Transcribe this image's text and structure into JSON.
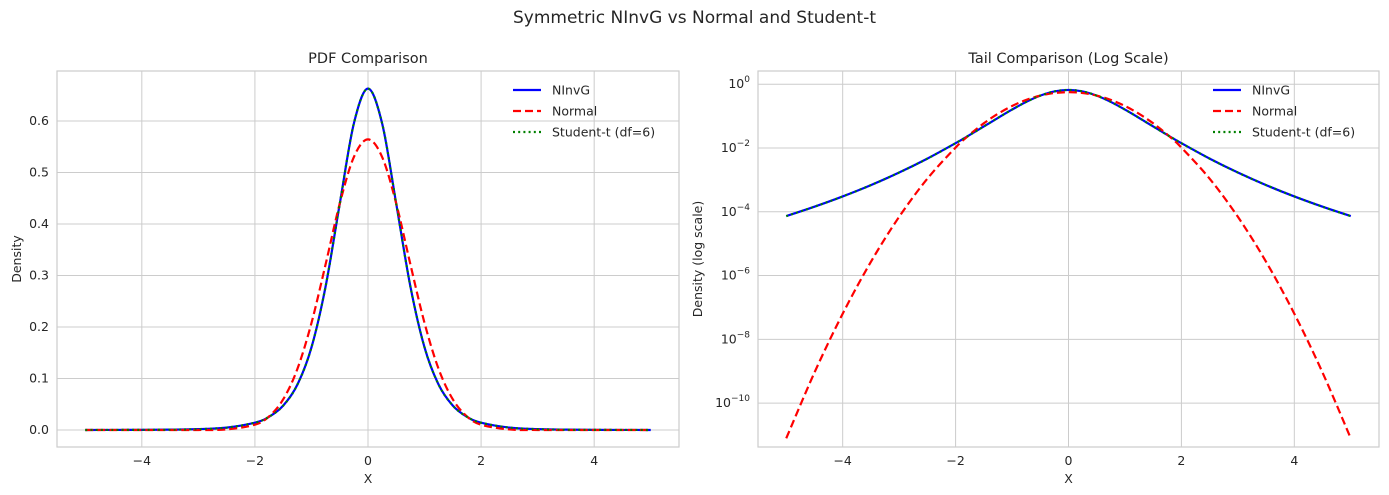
{
  "suptitle": "Symmetric NInvG vs Normal and Student-t",
  "colors": {
    "NInvG": "#0000ff",
    "Normal": "#ff0000",
    "Student-t": "#008000",
    "grid": "#cccccc",
    "spine": "#cccccc"
  },
  "chart_data": [
    {
      "type": "line",
      "title": "PDF Comparison",
      "xlabel": "X",
      "ylabel": "Density",
      "xlim": [
        -5.5,
        5.5
      ],
      "ylim": [
        -0.033,
        0.697
      ],
      "yscale": "linear",
      "grid": true,
      "legend_position": "top-right",
      "xticks": [
        -4,
        -2,
        0,
        2,
        4
      ],
      "xtick_labels": [
        "−4",
        "−2",
        "0",
        "2",
        "4"
      ],
      "yticks": [
        0,
        0.1,
        0.2,
        0.3,
        0.4,
        0.5,
        0.6
      ],
      "ytick_labels": [
        "0.0",
        "0.1",
        "0.2",
        "0.3",
        "0.4",
        "0.5",
        "0.6"
      ],
      "series_ref": "series"
    },
    {
      "type": "line",
      "title": "Tail Comparison (Log Scale)",
      "xlabel": "X",
      "ylabel": "Density (log scale)",
      "xlim": [
        -5.5,
        5.5
      ],
      "ylim": [
        4.2e-12,
        2.6
      ],
      "yscale": "log",
      "grid": true,
      "legend_position": "top-right",
      "xticks": [
        -4,
        -2,
        0,
        2,
        4
      ],
      "xtick_labels": [
        "−4",
        "−2",
        "0",
        "2",
        "4"
      ],
      "yticks": [
        1,
        0.01,
        0.0001,
        1e-06,
        1e-08,
        1e-10
      ],
      "ytick_labels": [
        [
          "10",
          "0"
        ],
        [
          "10",
          "−2"
        ],
        [
          "10",
          "−4"
        ],
        [
          "10",
          "−6"
        ],
        [
          "10",
          "−8"
        ],
        [
          "10",
          "−10"
        ]
      ],
      "series_ref": "series"
    }
  ],
  "series": {
    "x": [
      0,
      0.25,
      0.5,
      0.75,
      1,
      1.25,
      1.5,
      1.75,
      2,
      2.5,
      3,
      3.5,
      4,
      4.5,
      5
    ],
    "symmetric": true,
    "lines": [
      {
        "name": "NInvG",
        "style": "solid",
        "values": [
          0.6628,
          0.5951,
          0.4389,
          0.2785,
          0.1603,
          0.08788,
          0.04738,
          0.02568,
          0.01417,
          0.004648,
          0.001699,
          0.000686,
          0.000303,
          0.0001444,
          7.31e-05
        ]
      },
      {
        "name": "Normal",
        "style": "dashed",
        "values": [
          0.5642,
          0.53,
          0.4394,
          0.3215,
          0.2076,
          0.1182,
          0.05947,
          0.02639,
          0.01033,
          0.001089,
          6.96e-05,
          2.7e-06,
          6.35e-08,
          9.06e-10,
          7.84e-12
        ]
      },
      {
        "name": "Student-t (df=6)",
        "style": "dotted",
        "values": [
          0.6628,
          0.5951,
          0.4389,
          0.2785,
          0.1603,
          0.08788,
          0.04738,
          0.02568,
          0.01417,
          0.004648,
          0.001699,
          0.000686,
          0.000303,
          0.0001444,
          7.31e-05
        ]
      }
    ]
  }
}
